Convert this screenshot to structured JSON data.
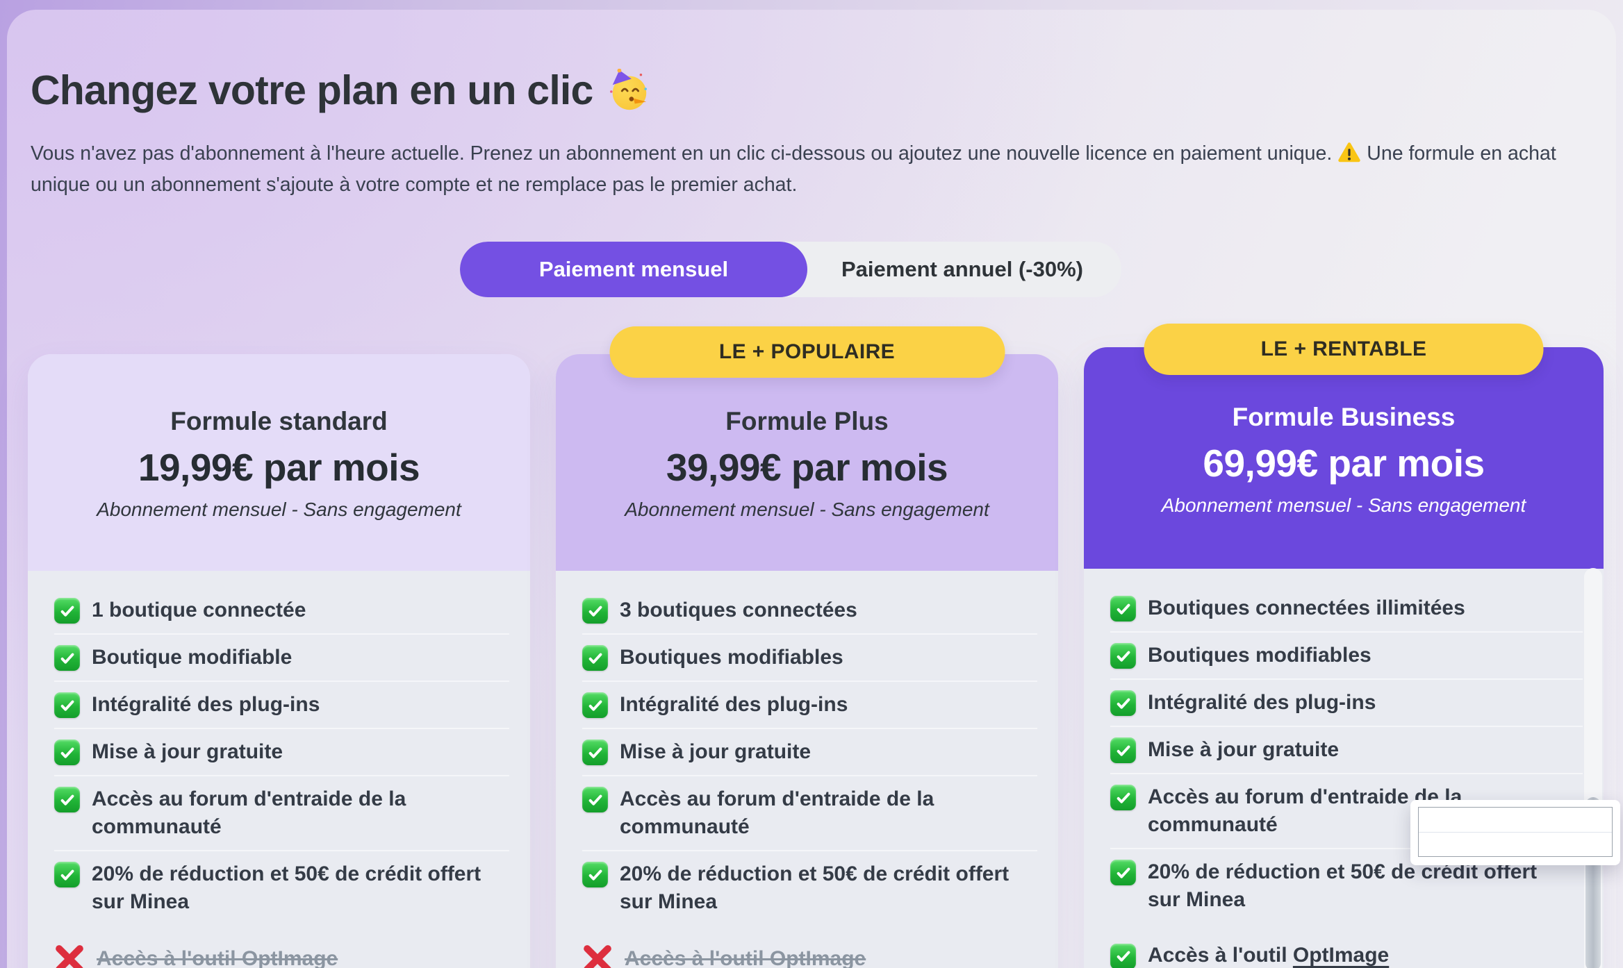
{
  "colors": {
    "accent_purple": "#7450e3",
    "business_header_purple": "#6b48dd",
    "badge_yellow": "#fbd246",
    "standard_header_lavender": "#e4dcf8",
    "plus_header_lavender": "#cdbaf1",
    "card_body_gray": "#e9ebf1",
    "included_green": "#21b437",
    "excluded_red": "#dd2e3e"
  },
  "header": {
    "title": "Changez votre plan en un clic",
    "title_emoji": "party-face",
    "description_part1": "Vous n'avez pas d'abonnement à l'heure actuelle. Prenez un abonnement en un clic ci-dessous ou ajoutez une nouvelle licence en paiement unique.",
    "warning_emoji": "warning-sign",
    "description_part2": "Une formule en achat unique ou un abonnement s'ajoute à votre compte et ne remplace pas le premier achat."
  },
  "billing_toggle": {
    "monthly_label": "Paiement mensuel",
    "annual_label": "Paiement annuel (-30%)",
    "selected": "monthly"
  },
  "plans": [
    {
      "id": "standard",
      "name": "Formule standard",
      "price": "19,99€ par mois",
      "billing_note": "Abonnement mensuel - Sans engagement",
      "badge": "",
      "features": [
        {
          "text": "1 boutique connectée",
          "included": true
        },
        {
          "text": "Boutique modifiable",
          "included": true
        },
        {
          "text": "Intégralité des plug-ins",
          "included": true
        },
        {
          "text": "Mise à jour gratuite",
          "included": true
        },
        {
          "text": "Accès au forum d'entraide de la communauté",
          "included": true
        },
        {
          "text": "20% de réduction et 50€ de crédit offert sur Minea",
          "included": true
        },
        {
          "text": "Accès à l'outil OptImage",
          "included": false
        }
      ]
    },
    {
      "id": "plus",
      "name": "Formule Plus",
      "price": "39,99€ par mois",
      "billing_note": "Abonnement mensuel - Sans engagement",
      "badge": "LE + POPULAIRE",
      "features": [
        {
          "text": "3 boutiques connectées",
          "included": true
        },
        {
          "text": "Boutiques modifiables",
          "included": true
        },
        {
          "text": "Intégralité des plug-ins",
          "included": true
        },
        {
          "text": "Mise à jour gratuite",
          "included": true
        },
        {
          "text": "Accès au forum d'entraide de la communauté",
          "included": true
        },
        {
          "text": "20% de réduction et 50€ de crédit offert sur Minea",
          "included": true
        },
        {
          "text": "Accès à l'outil OptImage",
          "included": false
        }
      ]
    },
    {
      "id": "business",
      "name": "Formule Business",
      "price": "69,99€ par mois",
      "billing_note": "Abonnement mensuel - Sans engagement",
      "badge": "LE + RENTABLE",
      "features": [
        {
          "text": "Boutiques connectées illimitées",
          "included": true
        },
        {
          "text": "Boutiques modifiables",
          "included": true
        },
        {
          "text": "Intégralité des plug-ins",
          "included": true
        },
        {
          "text": "Mise à jour gratuite",
          "included": true
        },
        {
          "text": "Accès au forum d'entraide de la communauté",
          "included": true
        },
        {
          "text": "20% de réduction et 50€ de crédit offert sur Minea",
          "included": true
        },
        {
          "text": "Accès à l'outil OptImage",
          "included": true,
          "underline_part": "OptImage"
        }
      ]
    }
  ]
}
